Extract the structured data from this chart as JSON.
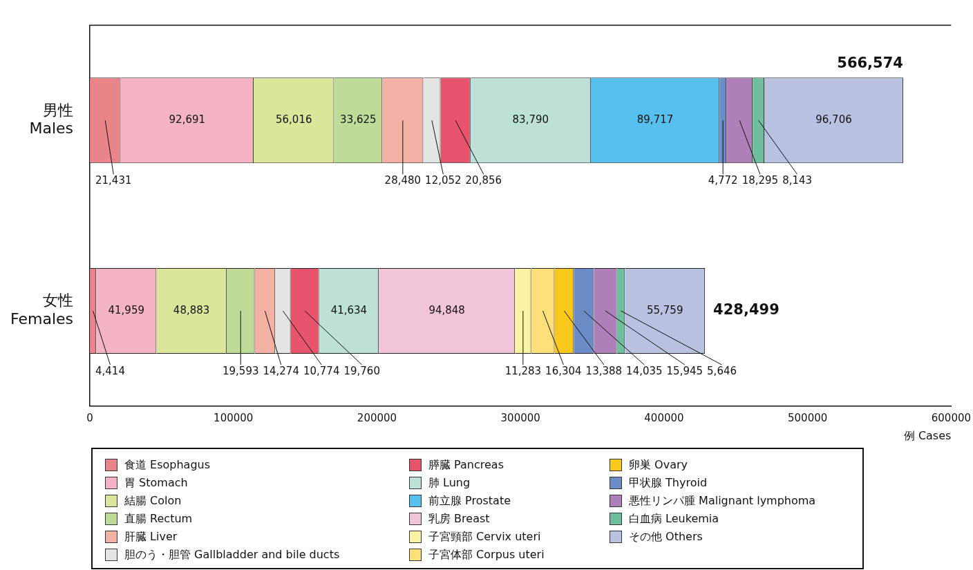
{
  "chart_data": {
    "type": "bar",
    "orientation": "horizontal",
    "stacked": true,
    "categories": [
      "男性\nMales",
      "女性\nFemales"
    ],
    "xlabel": "例 Cases",
    "xlim": [
      0,
      600000
    ],
    "xticks": [
      0,
      100000,
      200000,
      300000,
      400000,
      500000,
      600000
    ],
    "grid": false,
    "legend": "bottom",
    "totals": [
      "566,574",
      "428,499"
    ],
    "series": [
      {
        "name": "食道 Esophagus",
        "color": "#e8848a",
        "values": [
          21431,
          4414
        ],
        "value_labels": [
          "21,431",
          "4,414"
        ]
      },
      {
        "name": "胃 Stomach",
        "color": "#f4b4c4",
        "values": [
          92691,
          41959
        ],
        "value_labels": [
          "92,691",
          "41,959"
        ]
      },
      {
        "name": "結腸 Colon",
        "color": "#dce59a",
        "values": [
          56016,
          48883
        ],
        "value_labels": [
          "56,016",
          "48,883"
        ]
      },
      {
        "name": "直腸 Rectum",
        "color": "#bedc98",
        "values": [
          33625,
          19593
        ],
        "value_labels": [
          "33,625",
          "19,593"
        ]
      },
      {
        "name": "肝臓 Liver",
        "color": "#f3b0a4",
        "values": [
          28480,
          14274
        ],
        "value_labels": [
          "28,480",
          "14,274"
        ]
      },
      {
        "name": "胆のう・胆管 Gallbladder and bile ducts",
        "color": "#e4e4e2",
        "values": [
          12052,
          10774
        ],
        "value_labels": [
          "12,052",
          "10,774"
        ]
      },
      {
        "name": "膵臓 Pancreas",
        "color": "#e8546c",
        "values": [
          20856,
          19760
        ],
        "value_labels": [
          "20,856",
          "19,760"
        ]
      },
      {
        "name": "肺 Lung",
        "color": "#bde0d8",
        "values": [
          83790,
          41634
        ],
        "value_labels": [
          "83,790",
          "41,634"
        ]
      },
      {
        "name": "前立腺 Prostate",
        "color": "#58c0ee",
        "values": [
          89717,
          null
        ],
        "value_labels": [
          "89,717",
          null
        ]
      },
      {
        "name": "乳房 Breast",
        "color": "#f2c4da",
        "values": [
          null,
          94848
        ],
        "value_labels": [
          null,
          "94,848"
        ]
      },
      {
        "name": "子宮頸部 Cervix uteri",
        "color": "#fdf3a4",
        "values": [
          null,
          11283
        ],
        "value_labels": [
          null,
          "11,283"
        ]
      },
      {
        "name": "子宮体部 Corpus uteri",
        "color": "#fde07a",
        "values": [
          null,
          16304
        ],
        "value_labels": [
          null,
          "16,304"
        ]
      },
      {
        "name": "卵巣 Ovary",
        "color": "#f9c81a",
        "values": [
          null,
          13388
        ],
        "value_labels": [
          null,
          "13,388"
        ]
      },
      {
        "name": "甲状腺 Thyroid",
        "color": "#6c8cc8",
        "values": [
          4772,
          14035
        ],
        "value_labels": [
          "4,772",
          "14,035"
        ]
      },
      {
        "name": "悪性リンパ腫 Malignant lymphoma",
        "color": "#ae7fb8",
        "values": [
          18295,
          15945
        ],
        "value_labels": [
          "18,295",
          "15,945"
        ]
      },
      {
        "name": "白血病 Leukemia",
        "color": "#6fbf9f",
        "values": [
          8143,
          5646
        ],
        "value_labels": [
          "8,143",
          "5,646"
        ]
      },
      {
        "name": "その他 Others",
        "color": "#b8c2e0",
        "values": [
          96706,
          55759
        ],
        "value_labels": [
          "96,706",
          "55,759"
        ]
      }
    ]
  }
}
